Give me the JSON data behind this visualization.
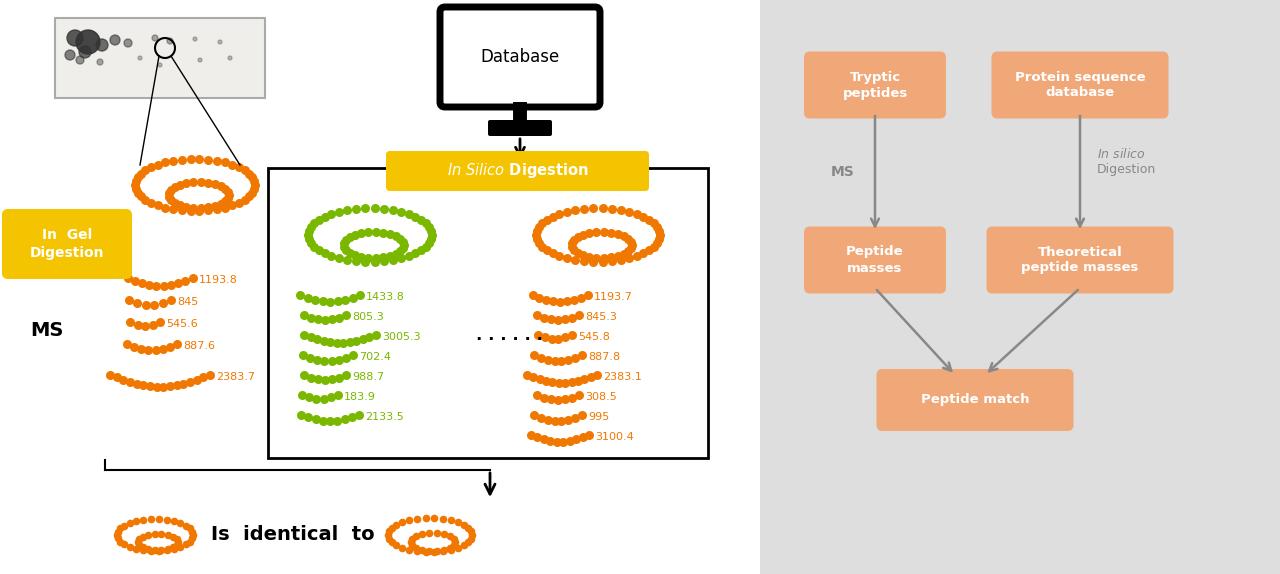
{
  "bg_color": "#ffffff",
  "right_panel_bg": "#dedede",
  "orange_color": "#f07800",
  "green_color": "#7ab800",
  "yellow_color": "#f5c400",
  "salmon_color": "#f0a878",
  "gray_color": "#888888",
  "left_ms_values": [
    "1193.8",
    "845",
    "545.6",
    "887.6",
    "2383.7"
  ],
  "green_ms_values": [
    "1433.8",
    "805.3",
    "3005.3",
    "702.4",
    "988.7",
    "183.9",
    "2133.5"
  ],
  "right_ms_values": [
    "1193.7",
    "845.3",
    "545.8",
    "887.8",
    "2383.1",
    "308.5",
    "995",
    "3100.4"
  ]
}
